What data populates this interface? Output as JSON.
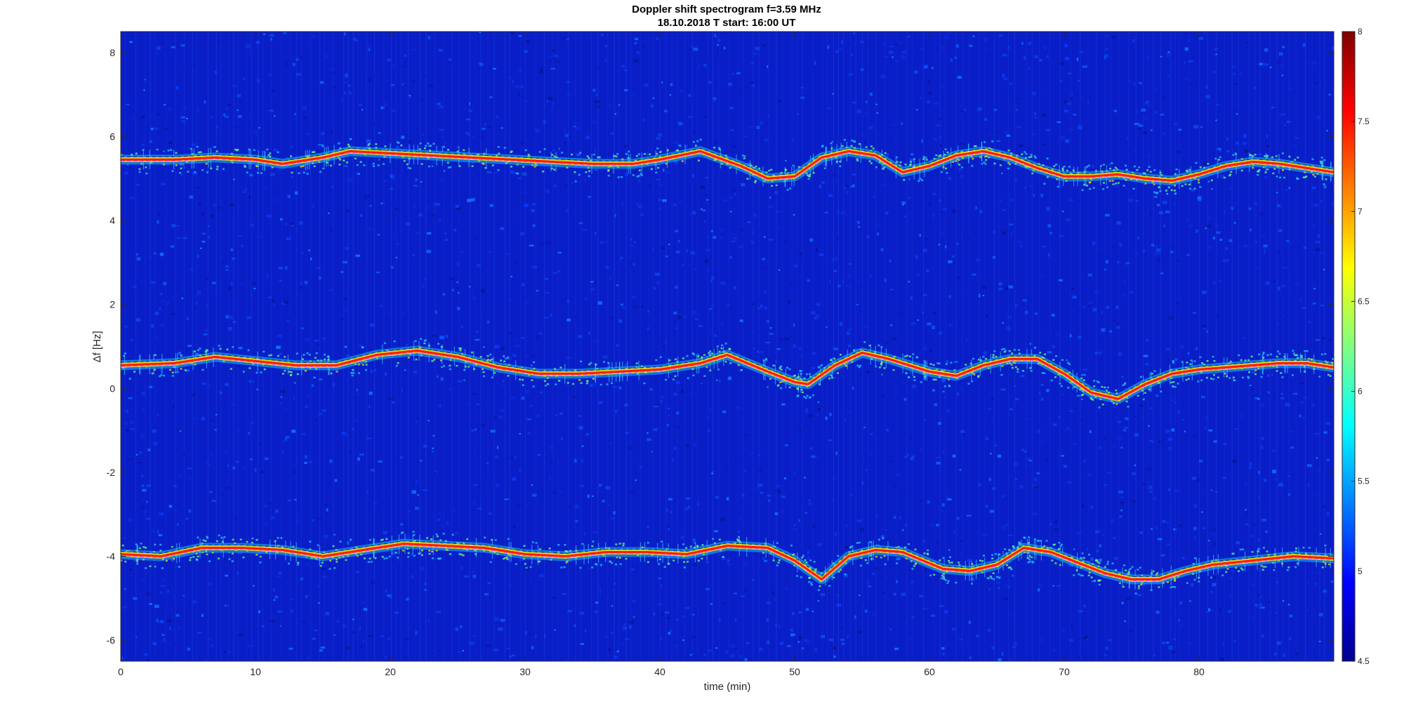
{
  "chart_data": {
    "type": "heatmap",
    "title": "Doppler shift spectrogram f=3.59 MHz",
    "subtitle": "18.10.2018   T start: 16:00 UT",
    "xlabel": "time (min)",
    "ylabel": "Δf [Hz]",
    "xlim": [
      0,
      90
    ],
    "ylim": [
      -6.5,
      8.5
    ],
    "xticks": [
      "0",
      "10",
      "20",
      "30",
      "40",
      "50",
      "60",
      "70",
      "80"
    ],
    "yticks": [
      "-6",
      "-4",
      "-2",
      "0",
      "2",
      "4",
      "6",
      "8"
    ],
    "colorbar": {
      "clim": [
        4.5,
        8
      ],
      "ticks": [
        "4.5",
        "5",
        "5.5",
        "6",
        "6.5",
        "7",
        "7.5",
        "8"
      ],
      "colormap": "jet"
    },
    "background_level": 5.0,
    "series": [
      {
        "x": [
          0,
          4,
          7,
          10,
          12,
          15,
          17,
          20,
          23,
          26,
          29,
          32,
          35,
          38,
          40,
          43,
          46,
          48,
          50,
          52,
          54,
          56,
          58,
          60,
          62,
          64,
          66,
          68,
          70,
          72,
          74,
          76,
          78,
          80,
          82,
          84,
          86,
          88,
          90
        ],
        "y": [
          5.45,
          5.45,
          5.5,
          5.45,
          5.35,
          5.5,
          5.65,
          5.6,
          5.55,
          5.5,
          5.45,
          5.4,
          5.35,
          5.35,
          5.45,
          5.65,
          5.3,
          5.0,
          5.05,
          5.5,
          5.65,
          5.55,
          5.15,
          5.3,
          5.55,
          5.65,
          5.5,
          5.25,
          5.05,
          5.05,
          5.1,
          5.0,
          4.95,
          5.1,
          5.3,
          5.4,
          5.35,
          5.25,
          5.15
        ]
      },
      {
        "x": [
          0,
          4,
          7,
          10,
          13,
          16,
          19,
          22,
          25,
          28,
          31,
          34,
          37,
          40,
          43,
          45,
          48,
          50,
          51,
          53,
          55,
          57,
          60,
          62,
          64,
          66,
          68,
          70,
          72,
          74,
          76,
          78,
          80,
          82,
          84,
          86,
          88,
          90
        ],
        "y": [
          0.55,
          0.6,
          0.75,
          0.65,
          0.55,
          0.55,
          0.8,
          0.9,
          0.75,
          0.5,
          0.35,
          0.35,
          0.4,
          0.45,
          0.6,
          0.8,
          0.4,
          0.15,
          0.1,
          0.55,
          0.85,
          0.7,
          0.4,
          0.3,
          0.55,
          0.7,
          0.7,
          0.35,
          -0.1,
          -0.25,
          0.1,
          0.35,
          0.45,
          0.5,
          0.55,
          0.6,
          0.6,
          0.5
        ]
      },
      {
        "x": [
          0,
          3,
          6,
          9,
          12,
          15,
          18,
          21,
          24,
          27,
          30,
          33,
          36,
          39,
          42,
          45,
          48,
          50,
          52,
          54,
          56,
          58,
          61,
          63,
          65,
          67,
          69,
          71,
          73,
          75,
          77,
          79,
          81,
          84,
          87,
          90
        ],
        "y": [
          -3.95,
          -4.0,
          -3.8,
          -3.8,
          -3.85,
          -4.0,
          -3.85,
          -3.7,
          -3.75,
          -3.8,
          -3.95,
          -4.0,
          -3.9,
          -3.9,
          -3.95,
          -3.75,
          -3.8,
          -4.1,
          -4.55,
          -4.0,
          -3.85,
          -3.9,
          -4.3,
          -4.35,
          -4.2,
          -3.8,
          -3.9,
          -4.15,
          -4.4,
          -4.55,
          -4.55,
          -4.35,
          -4.2,
          -4.1,
          -4.0,
          -4.05
        ]
      }
    ]
  }
}
